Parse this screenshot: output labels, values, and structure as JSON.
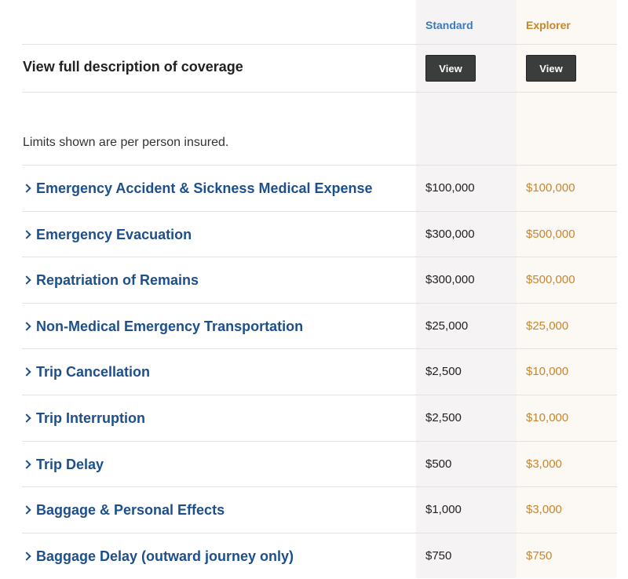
{
  "header": {
    "standard_label": "Standard",
    "explorer_label": "Explorer"
  },
  "description": {
    "title": "View full description of coverage",
    "standard_button": "View",
    "explorer_button": "View"
  },
  "note": "Limits shown are per person insured.",
  "colors": {
    "standard": "#3d79bf",
    "explorer": "#c6862e",
    "link": "#1d4f8c",
    "button": "#3b3d3c"
  },
  "rows": [
    {
      "label": "Emergency Accident & Sickness Medical Expense",
      "standard": "$100,000",
      "explorer": "$100,000"
    },
    {
      "label": "Emergency Evacuation",
      "standard": "$300,000",
      "explorer": "$500,000"
    },
    {
      "label": "Repatriation of Remains",
      "standard": "$300,000",
      "explorer": "$500,000"
    },
    {
      "label": "Non-Medical Emergency Transportation",
      "standard": "$25,000",
      "explorer": "$25,000"
    },
    {
      "label": "Trip Cancellation",
      "standard": "$2,500",
      "explorer": "$10,000"
    },
    {
      "label": "Trip Interruption",
      "standard": "$2,500",
      "explorer": "$10,000"
    },
    {
      "label": "Trip Delay",
      "standard": "$500",
      "explorer": "$3,000"
    },
    {
      "label": "Baggage & Personal Effects",
      "standard": "$1,000",
      "explorer": "$3,000"
    },
    {
      "label": "Baggage Delay (outward journey only)",
      "standard": "$750",
      "explorer": "$750"
    }
  ]
}
